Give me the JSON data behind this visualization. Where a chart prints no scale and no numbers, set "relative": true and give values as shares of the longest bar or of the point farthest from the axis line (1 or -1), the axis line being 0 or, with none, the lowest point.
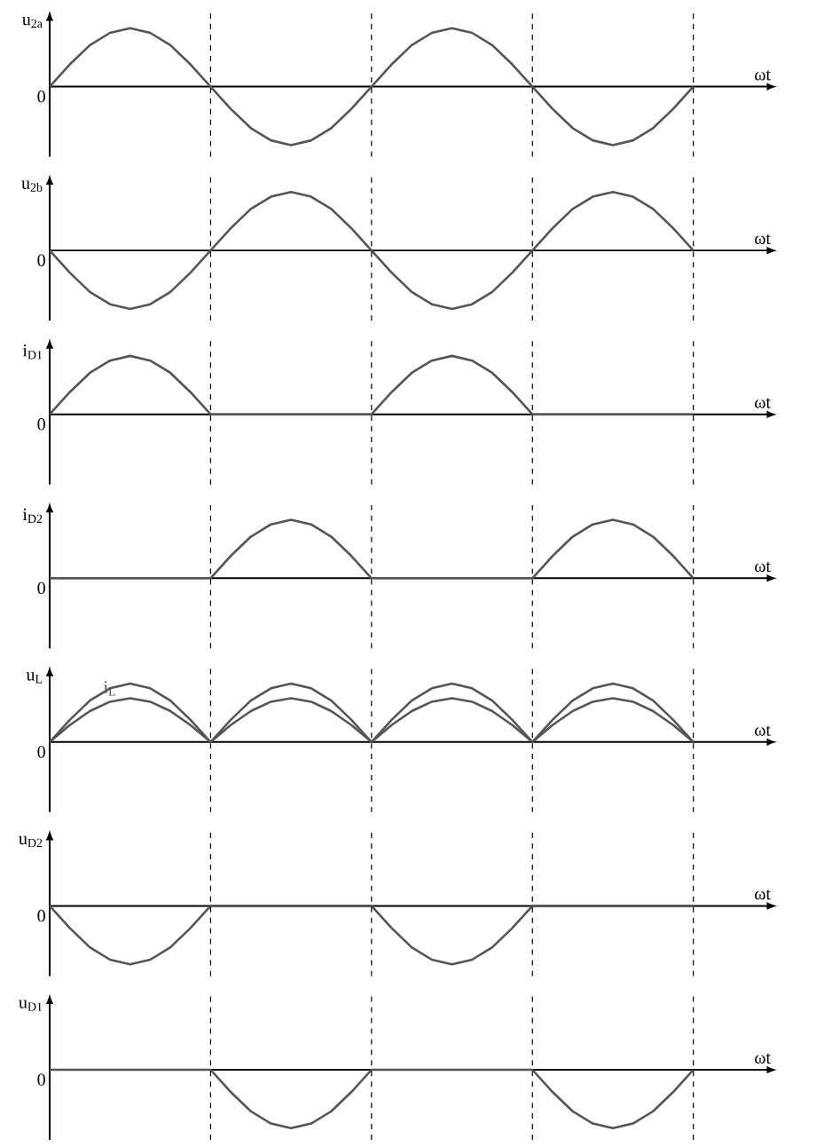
{
  "chart_data": [
    {
      "type": "line",
      "ylabel": "u$_{2a}$",
      "xlabel": "ωt",
      "relative": true,
      "grid": "x",
      "categories": [
        null,
        null,
        null,
        null,
        null,
        null,
        null,
        null,
        null,
        null,
        null,
        null,
        null,
        null,
        null,
        null,
        null,
        null,
        null,
        null,
        null,
        null,
        null,
        null,
        null,
        null,
        null,
        null,
        null,
        null,
        null,
        null,
        null
      ],
      "series": [
        {
          "color": "#555555",
          "values": [
            0,
            0.38,
            0.71,
            0.92,
            1,
            0.92,
            0.71,
            0.38,
            0,
            -0.38,
            -0.71,
            -0.92,
            -1,
            -0.92,
            -0.71,
            -0.38,
            0,
            0.38,
            0.71,
            0.92,
            1,
            0.92,
            0.71,
            0.38,
            0,
            -0.38,
            -0.71,
            -0.92,
            -1,
            -0.92,
            -0.71,
            -0.38,
            0
          ]
        }
      ],
      "annotations": [
        "0"
      ]
    },
    {
      "type": "line",
      "ylabel": "u$_{2b}$",
      "xlabel": "ωt",
      "relative": true,
      "grid": "x",
      "categories": [
        null,
        null,
        null,
        null,
        null,
        null,
        null,
        null,
        null,
        null,
        null,
        null,
        null,
        null,
        null,
        null,
        null,
        null,
        null,
        null,
        null,
        null,
        null,
        null,
        null,
        null,
        null,
        null,
        null,
        null,
        null,
        null,
        null
      ],
      "series": [
        {
          "color": "#555555",
          "values": [
            0,
            -0.38,
            -0.71,
            -0.92,
            -1,
            -0.92,
            -0.71,
            -0.38,
            0,
            0.38,
            0.71,
            0.92,
            1,
            0.92,
            0.71,
            0.38,
            0,
            -0.38,
            -0.71,
            -0.92,
            -1,
            -0.92,
            -0.71,
            -0.38,
            0,
            0.38,
            0.71,
            0.92,
            1,
            0.92,
            0.71,
            0.38,
            0
          ]
        }
      ],
      "annotations": [
        "0"
      ]
    },
    {
      "type": "line",
      "ylabel": "i$_{D1}$",
      "xlabel": "ωt",
      "relative": true,
      "grid": "x",
      "categories": [
        null,
        null,
        null,
        null,
        null,
        null,
        null,
        null,
        null,
        null,
        null,
        null,
        null,
        null,
        null,
        null,
        null,
        null,
        null,
        null,
        null,
        null,
        null,
        null,
        null,
        null,
        null,
        null,
        null,
        null,
        null,
        null,
        null
      ],
      "series": [
        {
          "color": "#555555",
          "values": [
            0,
            0.38,
            0.71,
            0.92,
            1,
            0.92,
            0.71,
            0.38,
            0,
            0,
            0,
            0,
            0,
            0,
            0,
            0,
            0,
            0.38,
            0.71,
            0.92,
            1,
            0.92,
            0.71,
            0.38,
            0,
            0,
            0,
            0,
            0,
            0,
            0,
            0,
            0
          ]
        }
      ],
      "annotations": [
        "0"
      ]
    },
    {
      "type": "line",
      "ylabel": "i$_{D2}$",
      "xlabel": "ωt",
      "relative": true,
      "grid": "x",
      "categories": [
        null,
        null,
        null,
        null,
        null,
        null,
        null,
        null,
        null,
        null,
        null,
        null,
        null,
        null,
        null,
        null,
        null,
        null,
        null,
        null,
        null,
        null,
        null,
        null,
        null,
        null,
        null,
        null,
        null,
        null,
        null,
        null,
        null
      ],
      "series": [
        {
          "color": "#555555",
          "values": [
            0,
            0,
            0,
            0,
            0,
            0,
            0,
            0,
            0,
            0.38,
            0.71,
            0.92,
            1,
            0.92,
            0.71,
            0.38,
            0,
            0,
            0,
            0,
            0,
            0,
            0,
            0,
            0,
            0.38,
            0.71,
            0.92,
            1,
            0.92,
            0.71,
            0.38,
            0
          ]
        }
      ],
      "annotations": [
        "0"
      ]
    },
    {
      "type": "line",
      "ylabel": "u$_{L}$",
      "xlabel": "ωt",
      "relative": true,
      "grid": "x",
      "categories": [
        null,
        null,
        null,
        null,
        null,
        null,
        null,
        null,
        null,
        null,
        null,
        null,
        null,
        null,
        null,
        null,
        null,
        null,
        null,
        null,
        null,
        null,
        null,
        null,
        null,
        null,
        null,
        null,
        null,
        null,
        null,
        null,
        null
      ],
      "series": [
        {
          "color": "#555555",
          "values": [
            0,
            0.38,
            0.71,
            0.92,
            1,
            0.92,
            0.71,
            0.38,
            0,
            0.38,
            0.71,
            0.92,
            1,
            0.92,
            0.71,
            0.38,
            0,
            0.38,
            0.71,
            0.92,
            1,
            0.92,
            0.71,
            0.38,
            0,
            0.38,
            0.71,
            0.92,
            1,
            0.92,
            0.71,
            0.38,
            0
          ]
        },
        {
          "name": "i$_{L}$",
          "color": "#555555",
          "values": [
            0,
            0.29,
            0.53,
            0.69,
            0.75,
            0.69,
            0.53,
            0.29,
            0,
            0.29,
            0.53,
            0.69,
            0.75,
            0.69,
            0.53,
            0.29,
            0,
            0.29,
            0.53,
            0.69,
            0.75,
            0.69,
            0.53,
            0.29,
            0,
            0.29,
            0.53,
            0.69,
            0.75,
            0.69,
            0.53,
            0.29,
            0
          ]
        }
      ],
      "annotations": [
        "0"
      ]
    },
    {
      "type": "line",
      "ylabel": "u$_{D2}$",
      "xlabel": "ωt",
      "relative": true,
      "grid": "x",
      "categories": [
        null,
        null,
        null,
        null,
        null,
        null,
        null,
        null,
        null,
        null,
        null,
        null,
        null,
        null,
        null,
        null,
        null,
        null,
        null,
        null,
        null,
        null,
        null,
        null,
        null,
        null,
        null,
        null,
        null,
        null,
        null,
        null,
        null
      ],
      "series": [
        {
          "color": "#555555",
          "values": [
            0,
            -0.38,
            -0.71,
            -0.92,
            -1,
            -0.92,
            -0.71,
            -0.38,
            0,
            0,
            0,
            0,
            0,
            0,
            0,
            0,
            0,
            -0.38,
            -0.71,
            -0.92,
            -1,
            -0.92,
            -0.71,
            -0.38,
            0,
            0,
            0,
            0,
            0,
            0,
            0,
            0,
            0
          ]
        }
      ],
      "annotations": [
        "0"
      ]
    },
    {
      "type": "line",
      "ylabel": "u$_{D1}$",
      "xlabel": "ωt",
      "relative": true,
      "grid": "x",
      "categories": [
        null,
        null,
        null,
        null,
        null,
        null,
        null,
        null,
        null,
        null,
        null,
        null,
        null,
        null,
        null,
        null,
        null,
        null,
        null,
        null,
        null,
        null,
        null,
        null,
        null,
        null,
        null,
        null,
        null,
        null,
        null,
        null,
        null
      ],
      "series": [
        {
          "color": "#555555",
          "values": [
            0,
            0,
            0,
            0,
            0,
            0,
            0,
            0,
            0,
            -0.38,
            -0.71,
            -0.92,
            -1,
            -0.92,
            -0.71,
            -0.38,
            0,
            0,
            0,
            0,
            0,
            0,
            0,
            0,
            0,
            -0.38,
            -0.71,
            -0.92,
            -1,
            -0.92,
            -0.71,
            -0.38,
            0
          ]
        }
      ],
      "annotations": [
        "0"
      ]
    }
  ]
}
